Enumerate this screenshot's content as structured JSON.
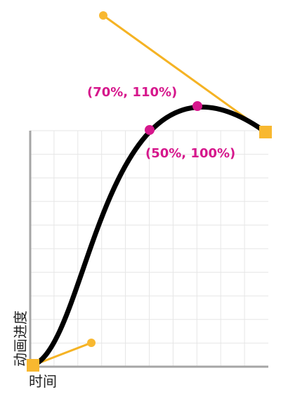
{
  "colors": {
    "curve": "#000000",
    "grid": "#e6e6e6",
    "axis": "#a6a6a6",
    "handle_line": "#f5b324",
    "handle_end": "#f8b830",
    "highlight": "#d6178c",
    "label_text": "#d6178c",
    "axis_text": "#222222"
  },
  "diagram": {
    "x_axis_label": "时间",
    "y_axis_label": "动画进度",
    "points": [
      {
        "id": "p70",
        "x": 0.7,
        "y": 1.1,
        "label": "(70%, 110%)"
      },
      {
        "id": "p50",
        "x": 0.5,
        "y": 1.0,
        "label": "(50%, 100%)"
      }
    ]
  }
}
